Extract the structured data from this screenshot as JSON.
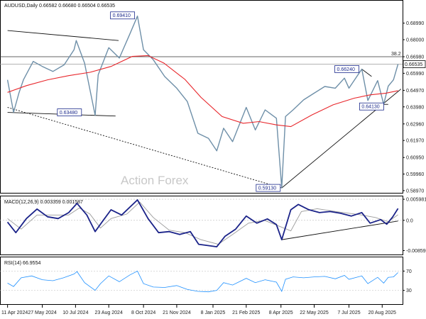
{
  "chart_data": {
    "type": "line",
    "symbol": "AUDUSD",
    "timeframe": "Daily",
    "title": "AUDUSD,Daily  0.66582 0.66680 0.66504 0.66535",
    "ohlc": {
      "open": 0.66582,
      "high": 0.6668,
      "low": 0.66504,
      "close": 0.66535
    },
    "watermark": "Action Forex",
    "current_price": 0.66535,
    "current_price_label": "0.66535",
    "fib_level": {
      "label": "38.2",
      "value": 0.6698
    },
    "price_axis": {
      "ylim": [
        0.5888,
        0.7029
      ],
      "ticks": [
        "0.68990",
        "0.68000",
        "0.66980",
        "0.65990",
        "0.64970",
        "0.63980",
        "0.62960",
        "0.61970",
        "0.60950",
        "0.59960",
        "0.58970"
      ]
    },
    "x_axis": {
      "ticks": [
        "11 Apr 2024",
        "27 May 2024",
        "10 Jul 2024",
        "23 Aug 2024",
        "8 Oct 2024",
        "21 Nov 2024",
        "8 Jan 2025",
        "21 Feb 2025",
        "8 Apr 2025",
        "22 May 2025",
        "7 Jul 2025",
        "20 Aug 2025"
      ]
    },
    "annotations": [
      {
        "label": "0.69410",
        "date": "2024-09-30",
        "value": 0.6941
      },
      {
        "label": "0.63480",
        "date": "2024-07-01",
        "value": 0.6348
      },
      {
        "label": "0.59130",
        "date": "2025-04-09",
        "value": 0.5913
      },
      {
        "label": "0.66240",
        "date": "2025-07-24",
        "value": 0.6624
      },
      {
        "label": "0.64130",
        "date": "2025-08-22",
        "value": 0.6413
      }
    ],
    "series": [
      {
        "name": "AUDUSD",
        "color": "#6e8fa8",
        "points": [
          [
            "2024-04-11",
            0.656
          ],
          [
            "2024-04-19",
            0.6365
          ],
          [
            "2024-04-26",
            0.648
          ],
          [
            "2024-05-02",
            0.656
          ],
          [
            "2024-05-15",
            0.667
          ],
          [
            "2024-05-27",
            0.664
          ],
          [
            "2024-06-10",
            0.661
          ],
          [
            "2024-06-25",
            0.665
          ],
          [
            "2024-07-08",
            0.674
          ],
          [
            "2024-07-11",
            0.6795
          ],
          [
            "2024-07-22",
            0.666
          ],
          [
            "2024-08-05",
            0.6348
          ],
          [
            "2024-08-09",
            0.659
          ],
          [
            "2024-08-23",
            0.6752
          ],
          [
            "2024-09-06",
            0.669
          ],
          [
            "2024-09-20",
            0.6835
          ],
          [
            "2024-09-30",
            0.6941
          ],
          [
            "2024-10-08",
            0.674
          ],
          [
            "2024-10-21",
            0.668
          ],
          [
            "2024-11-05",
            0.658
          ],
          [
            "2024-11-21",
            0.651
          ],
          [
            "2024-12-05",
            0.643
          ],
          [
            "2024-12-19",
            0.624
          ],
          [
            "2025-01-02",
            0.621
          ],
          [
            "2025-01-13",
            0.6135
          ],
          [
            "2025-01-22",
            0.627
          ],
          [
            "2025-02-03",
            0.619
          ],
          [
            "2025-02-21",
            0.6395
          ],
          [
            "2025-03-05",
            0.626
          ],
          [
            "2025-03-18",
            0.638
          ],
          [
            "2025-04-02",
            0.633
          ],
          [
            "2025-04-09",
            0.5913
          ],
          [
            "2025-04-14",
            0.634
          ],
          [
            "2025-04-24",
            0.638
          ],
          [
            "2025-05-08",
            0.644
          ],
          [
            "2025-05-22",
            0.648
          ],
          [
            "2025-06-05",
            0.652
          ],
          [
            "2025-06-19",
            0.651
          ],
          [
            "2025-07-01",
            0.657
          ],
          [
            "2025-07-07",
            0.651
          ],
          [
            "2025-07-24",
            0.6624
          ],
          [
            "2025-08-01",
            0.6436
          ],
          [
            "2025-08-14",
            0.6555
          ],
          [
            "2025-08-22",
            0.6413
          ],
          [
            "2025-08-28",
            0.6522
          ],
          [
            "2025-09-04",
            0.656
          ],
          [
            "2025-09-10",
            0.66535
          ]
        ]
      },
      {
        "name": "",
        "color": "#e8262b",
        "points": [
          [
            "2024-04-11",
            0.6485
          ],
          [
            "2024-05-06",
            0.6525
          ],
          [
            "2024-06-03",
            0.656
          ],
          [
            "2024-07-01",
            0.6585
          ],
          [
            "2024-07-29",
            0.6605
          ],
          [
            "2024-08-26",
            0.664
          ],
          [
            "2024-09-23",
            0.67
          ],
          [
            "2024-10-14",
            0.6705
          ],
          [
            "2024-11-04",
            0.666
          ],
          [
            "2024-12-02",
            0.6562
          ],
          [
            "2024-12-23",
            0.6455
          ],
          [
            "2025-01-20",
            0.634
          ],
          [
            "2025-02-17",
            0.63
          ],
          [
            "2025-03-10",
            0.631
          ],
          [
            "2025-04-02",
            0.629
          ],
          [
            "2025-04-21",
            0.628
          ],
          [
            "2025-05-19",
            0.635
          ],
          [
            "2025-06-16",
            0.641
          ],
          [
            "2025-07-14",
            0.645
          ],
          [
            "2025-08-04",
            0.647
          ],
          [
            "2025-08-25",
            0.648
          ],
          [
            "2025-09-10",
            0.6495
          ]
        ]
      }
    ],
    "macd": {
      "title": "MACD(12,26,9) 0.003359 0.001587",
      "params": "12,26,9",
      "main_value": 0.003359,
      "signal_value": 0.001587,
      "ylim": [
        -0.0095,
        0.0066
      ],
      "ticks": [
        "0.005981",
        "0.0",
        "-0.00859"
      ],
      "main": [
        [
          "2024-04-11",
          -0.0005
        ],
        [
          "2024-04-22",
          -0.0035
        ],
        [
          "2024-05-06",
          0.0005
        ],
        [
          "2024-05-20",
          0.0032
        ],
        [
          "2024-06-03",
          0.001
        ],
        [
          "2024-06-17",
          0.0005
        ],
        [
          "2024-07-01",
          0.0022
        ],
        [
          "2024-07-12",
          0.0048
        ],
        [
          "2024-07-25",
          0.0015
        ],
        [
          "2024-08-05",
          -0.0032
        ],
        [
          "2024-08-15",
          -0.0002
        ],
        [
          "2024-08-26",
          0.003
        ],
        [
          "2024-09-09",
          0.0015
        ],
        [
          "2024-09-30",
          0.0058
        ],
        [
          "2024-10-14",
          0.0005
        ],
        [
          "2024-10-28",
          -0.0035
        ],
        [
          "2024-11-11",
          -0.0032
        ],
        [
          "2024-11-25",
          -0.004
        ],
        [
          "2024-12-09",
          -0.0032
        ],
        [
          "2024-12-20",
          -0.0068
        ],
        [
          "2025-01-03",
          -0.0072
        ],
        [
          "2025-01-13",
          -0.0075
        ],
        [
          "2025-01-24",
          -0.0045
        ],
        [
          "2025-02-07",
          -0.0025
        ],
        [
          "2025-02-21",
          0.0012
        ],
        [
          "2025-03-07",
          -0.0008
        ],
        [
          "2025-03-21",
          0.0004
        ],
        [
          "2025-04-02",
          -0.0012
        ],
        [
          "2025-04-09",
          -0.0055
        ],
        [
          "2025-04-21",
          0.003
        ],
        [
          "2025-05-01",
          0.0045
        ],
        [
          "2025-05-15",
          0.003
        ],
        [
          "2025-05-29",
          0.0022
        ],
        [
          "2025-06-12",
          0.0025
        ],
        [
          "2025-06-26",
          0.002
        ],
        [
          "2025-07-10",
          0.0012
        ],
        [
          "2025-07-24",
          0.0022
        ],
        [
          "2025-08-04",
          -0.0008
        ],
        [
          "2025-08-18",
          0.0002
        ],
        [
          "2025-08-26",
          -0.0011
        ],
        [
          "2025-09-03",
          0.001
        ],
        [
          "2025-09-10",
          0.003359
        ]
      ],
      "signal": [
        [
          "2024-04-11",
          0.0005
        ],
        [
          "2024-04-29",
          -0.0025
        ],
        [
          "2024-05-20",
          0.0015
        ],
        [
          "2024-06-10",
          0.0015
        ],
        [
          "2024-07-01",
          0.0015
        ],
        [
          "2024-07-15",
          0.0035
        ],
        [
          "2024-07-29",
          0.0018
        ],
        [
          "2024-08-12",
          -0.0022
        ],
        [
          "2024-08-26",
          0.0005
        ],
        [
          "2024-09-16",
          0.0018
        ],
        [
          "2024-10-03",
          0.0052
        ],
        [
          "2024-10-21",
          0.0008
        ],
        [
          "2024-11-11",
          -0.0028
        ],
        [
          "2024-12-02",
          -0.0035
        ],
        [
          "2024-12-23",
          -0.0055
        ],
        [
          "2025-01-15",
          -0.0068
        ],
        [
          "2025-02-03",
          -0.004
        ],
        [
          "2025-02-24",
          -0.0008
        ],
        [
          "2025-03-17",
          0.0
        ],
        [
          "2025-04-07",
          -0.0018
        ],
        [
          "2025-04-21",
          -0.003
        ],
        [
          "2025-05-05",
          0.0025
        ],
        [
          "2025-05-26",
          0.0033
        ],
        [
          "2025-06-23",
          0.0024
        ],
        [
          "2025-07-21",
          0.0016
        ],
        [
          "2025-08-11",
          0.0008
        ],
        [
          "2025-08-28",
          -0.0004
        ],
        [
          "2025-09-10",
          0.001587
        ]
      ],
      "trendline": [
        [
          "2025-04-09",
          -0.0055
        ],
        [
          "2025-09-10",
          -0.0002
        ]
      ]
    },
    "rsi": {
      "title": "RSI(14) 66.9554",
      "period": 14,
      "value": 66.9554,
      "ylim": [
        3,
        97
      ],
      "ticks": [
        "70",
        "30"
      ],
      "levels": [
        70,
        30
      ],
      "points": [
        [
          "2024-04-11",
          45
        ],
        [
          "2024-04-19",
          38
        ],
        [
          "2024-04-29",
          56
        ],
        [
          "2024-05-13",
          60
        ],
        [
          "2024-05-27",
          52
        ],
        [
          "2024-06-10",
          50
        ],
        [
          "2024-06-24",
          56
        ],
        [
          "2024-07-08",
          64
        ],
        [
          "2024-07-12",
          69
        ],
        [
          "2024-07-22",
          46
        ],
        [
          "2024-08-05",
          30
        ],
        [
          "2024-08-12",
          44
        ],
        [
          "2024-08-23",
          60
        ],
        [
          "2024-09-06",
          48
        ],
        [
          "2024-09-20",
          62
        ],
        [
          "2024-09-30",
          70
        ],
        [
          "2024-10-08",
          44
        ],
        [
          "2024-10-21",
          37
        ],
        [
          "2024-11-05",
          36
        ],
        [
          "2024-11-21",
          40
        ],
        [
          "2024-12-05",
          32
        ],
        [
          "2024-12-19",
          28
        ],
        [
          "2025-01-02",
          27
        ],
        [
          "2025-01-13",
          30
        ],
        [
          "2025-01-22",
          46
        ],
        [
          "2025-02-03",
          41
        ],
        [
          "2025-02-21",
          55
        ],
        [
          "2025-03-05",
          46
        ],
        [
          "2025-03-18",
          52
        ],
        [
          "2025-04-02",
          47
        ],
        [
          "2025-04-09",
          28
        ],
        [
          "2025-04-14",
          53
        ],
        [
          "2025-04-24",
          58
        ],
        [
          "2025-05-08",
          56
        ],
        [
          "2025-05-22",
          58
        ],
        [
          "2025-06-05",
          59
        ],
        [
          "2025-06-19",
          54
        ],
        [
          "2025-07-01",
          61
        ],
        [
          "2025-07-07",
          53
        ],
        [
          "2025-07-24",
          60
        ],
        [
          "2025-08-01",
          44
        ],
        [
          "2025-08-14",
          57
        ],
        [
          "2025-08-22",
          45
        ],
        [
          "2025-08-28",
          57
        ],
        [
          "2025-09-04",
          58
        ],
        [
          "2025-09-10",
          66.9554
        ]
      ]
    },
    "trendlines": [
      {
        "from": [
          "2024-04-11",
          0.6855
        ],
        "to": [
          "2024-09-05",
          0.6795
        ],
        "style": "solid"
      },
      {
        "from": [
          "2024-04-11",
          0.6365
        ],
        "to": [
          "2024-09-01",
          0.6343
        ],
        "style": "solid"
      },
      {
        "from": [
          "2024-04-11",
          0.6395
        ],
        "to": [
          "2025-04-09",
          0.5913
        ],
        "style": "dashed"
      },
      {
        "from": [
          "2025-04-09",
          0.5913
        ],
        "to": [
          "2025-09-14",
          0.6505
        ],
        "style": "solid"
      },
      {
        "from": [
          "2025-07-24",
          0.6624
        ],
        "to": [
          "2025-08-06",
          0.658
        ],
        "style": "solid"
      },
      {
        "from": [
          "2025-08-18",
          0.6413
        ],
        "to": [
          "2025-08-28",
          0.6413
        ],
        "style": "solid"
      }
    ]
  }
}
